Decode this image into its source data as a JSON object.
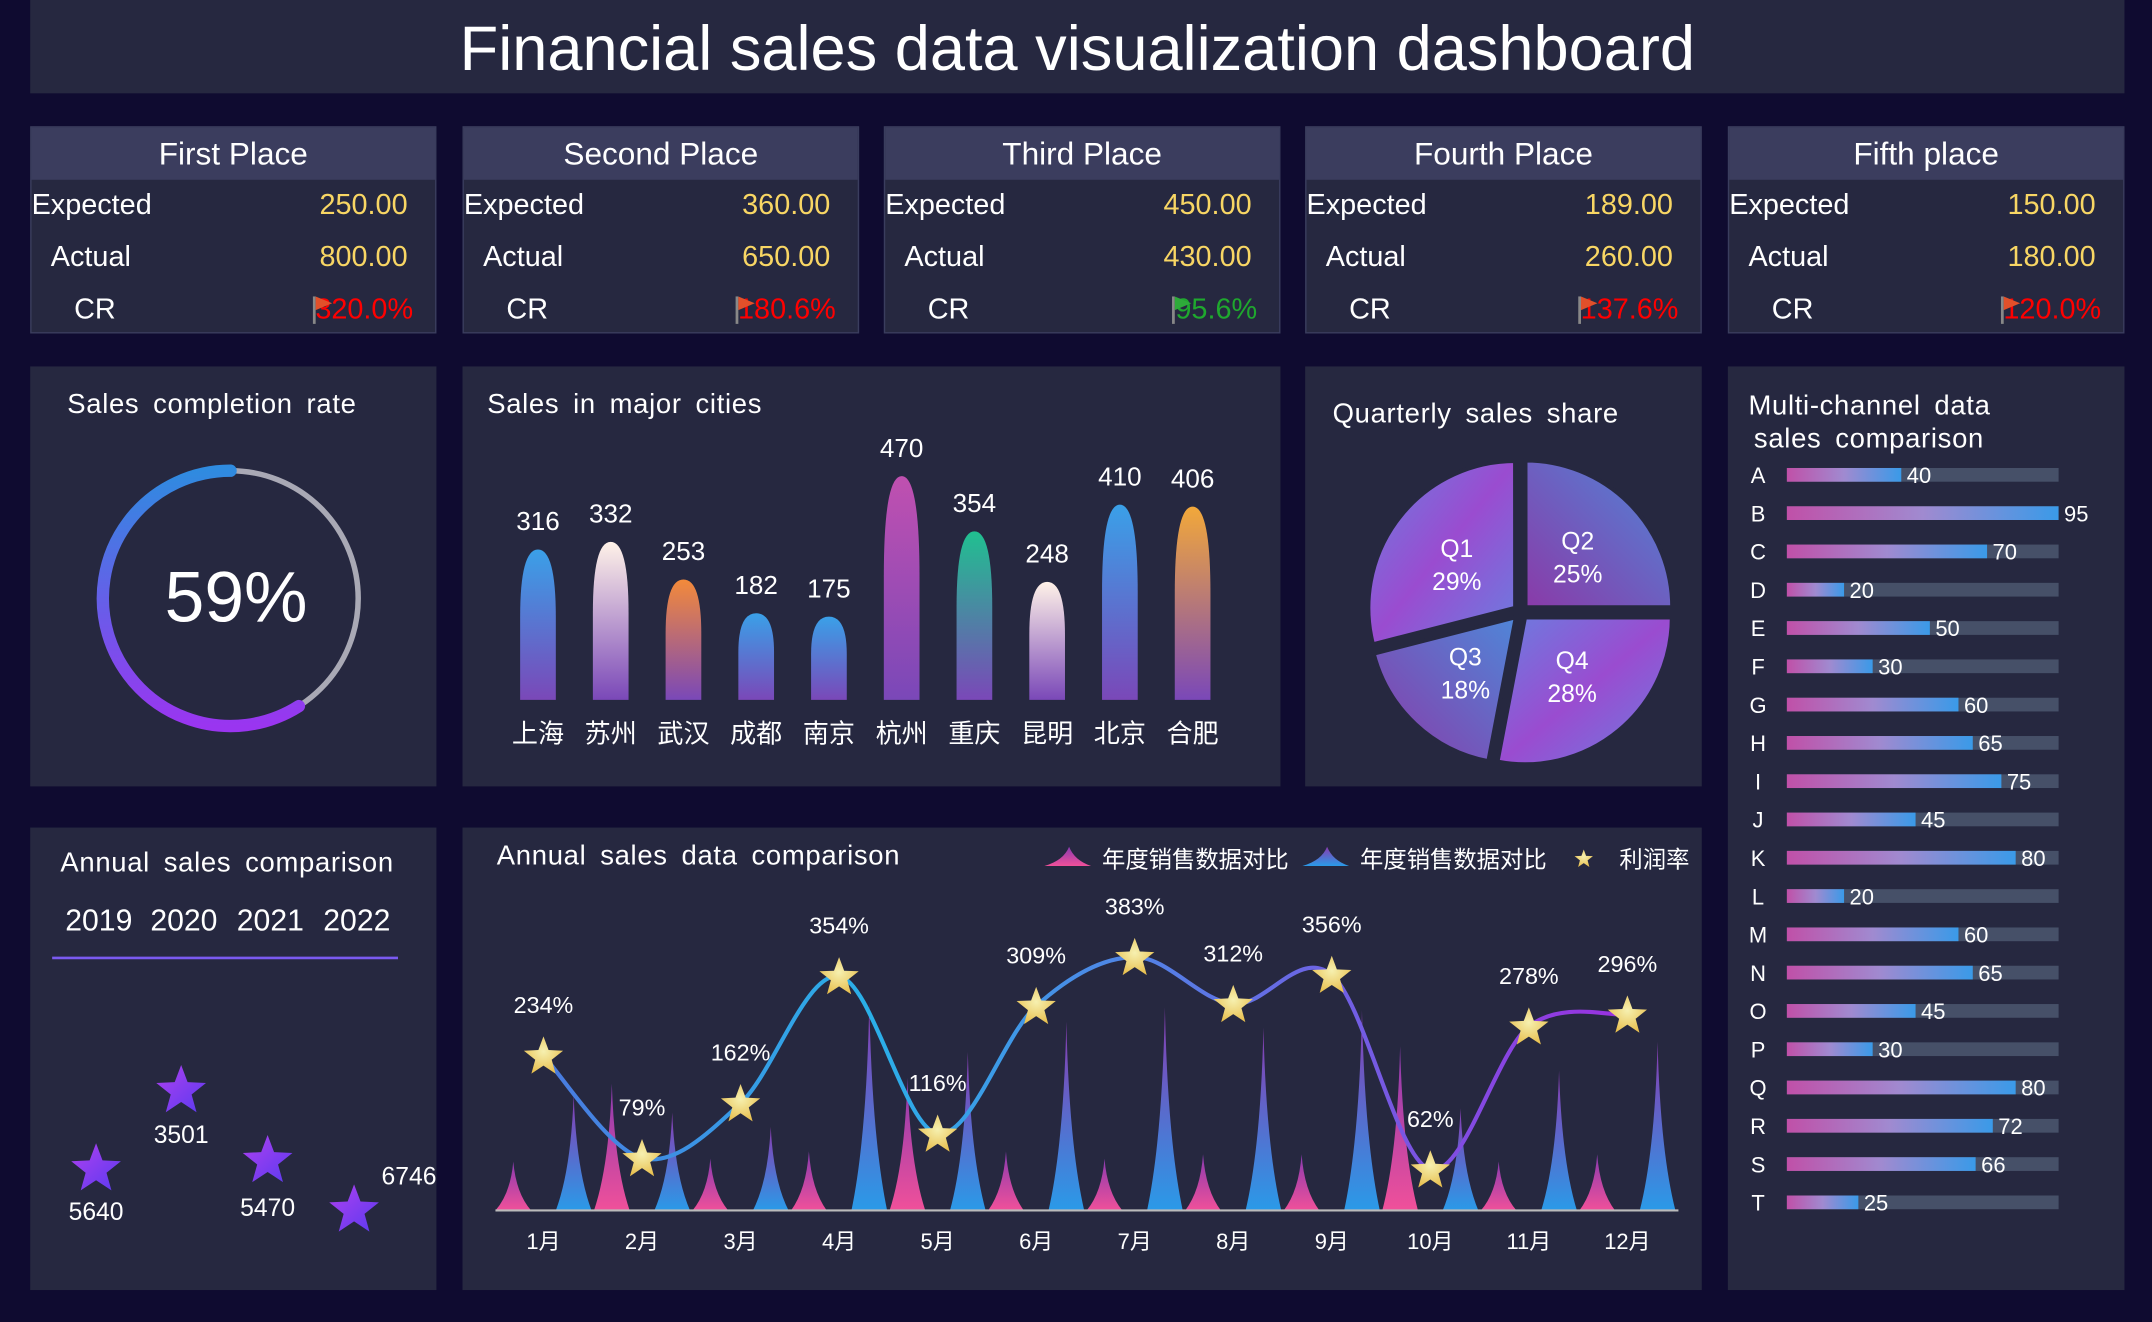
{
  "header": {
    "title": "Financial sales data visualization dashboard"
  },
  "cards": [
    {
      "title": "First Place",
      "expected_label": "Expected",
      "expected": "250.00",
      "actual_label": "Actual",
      "actual": "800.00",
      "cr_label": "CR",
      "cr": "320.0%",
      "cr_color": "#ff0000",
      "flag": "red"
    },
    {
      "title": "Second Place",
      "expected_label": "Expected",
      "expected": "360.00",
      "actual_label": "Actual",
      "actual": "650.00",
      "cr_label": "CR",
      "cr": "180.6%",
      "cr_color": "#ff0000",
      "flag": "red"
    },
    {
      "title": "Third Place",
      "expected_label": "Expected",
      "expected": "450.00",
      "actual_label": "Actual",
      "actual": "430.00",
      "cr_label": "CR",
      "cr": "95.6%",
      "cr_color": "#1fa82e",
      "flag": "green"
    },
    {
      "title": "Fourth Place",
      "expected_label": "Expected",
      "expected": "189.00",
      "actual_label": "Actual",
      "actual": "260.00",
      "cr_label": "CR",
      "cr": "137.6%",
      "cr_color": "#ff0000",
      "flag": "red"
    },
    {
      "title": "Fifth place",
      "expected_label": "Expected",
      "expected": "150.00",
      "actual_label": "Actual",
      "actual": "180.00",
      "cr_label": "CR",
      "cr": "120.0%",
      "cr_color": "#ff0000",
      "flag": "red"
    }
  ],
  "completion": {
    "title": "Sales completion rate",
    "value_label": "59%",
    "value": 59
  },
  "cities": {
    "title": "Sales in major cities",
    "labels": [
      "上海",
      "苏州",
      "武汉",
      "成都",
      "南京",
      "杭州",
      "重庆",
      "昆明",
      "北京",
      "合肥"
    ],
    "values": [
      316,
      332,
      253,
      182,
      175,
      470,
      354,
      248,
      410,
      406
    ]
  },
  "quarterly": {
    "title": "Quarterly sales share",
    "slices": [
      {
        "name": "Q1",
        "pct": "29%",
        "value": 29
      },
      {
        "name": "Q2",
        "pct": "25%",
        "value": 25
      },
      {
        "name": "Q3",
        "pct": "18%",
        "value": 18
      },
      {
        "name": "Q4",
        "pct": "28%",
        "value": 28
      }
    ]
  },
  "annual_left": {
    "title": "Annual sales comparison",
    "years": [
      "2019",
      "2020",
      "2021",
      "2022"
    ],
    "values": [
      "5640",
      "3501",
      "5470",
      "6746"
    ]
  },
  "channels": {
    "title_line1": "Multi-channel data",
    "title_line2": "sales comparison",
    "labels": [
      "A",
      "B",
      "C",
      "D",
      "E",
      "F",
      "G",
      "H",
      "I",
      "J",
      "K",
      "L",
      "M",
      "N",
      "O",
      "P",
      "Q",
      "R",
      "S",
      "T"
    ],
    "values": [
      40,
      95,
      70,
      20,
      50,
      30,
      60,
      65,
      75,
      45,
      80,
      20,
      60,
      65,
      45,
      30,
      80,
      72,
      66,
      25
    ]
  },
  "chart_data": {
    "type": "line",
    "title": "Annual sales data comparison",
    "legend": [
      "年度销售数据对比",
      "年度销售数据对比",
      "利润率"
    ],
    "legend_placement": "top-right",
    "categories": [
      "1月",
      "2月",
      "3月",
      "4月",
      "5月",
      "6月",
      "7月",
      "8月",
      "9月",
      "10月",
      "11月",
      "12月"
    ],
    "series": [
      {
        "name": "年度销售数据对比",
        "type": "pictorial-spike",
        "color": "#e0509a",
        "values": [
          34,
          88,
          36,
          41,
          92,
          41,
          36,
          39,
          39,
          114,
          34,
          39
        ]
      },
      {
        "name": "年度销售数据对比",
        "type": "pictorial-spike",
        "color": "#3a8ee0",
        "values": [
          80,
          68,
          58,
          144,
          110,
          131,
          141,
          127,
          139,
          71,
          97,
          117
        ]
      },
      {
        "name": "利润率",
        "type": "line",
        "values": [
          234,
          79,
          162,
          354,
          116,
          309,
          383,
          312,
          356,
          62,
          278,
          296
        ],
        "labels": [
          "234%",
          "79%",
          "162%",
          "354%",
          "116%",
          "309%",
          "383%",
          "312%",
          "356%",
          "62%",
          "278%",
          "296%"
        ]
      }
    ]
  }
}
